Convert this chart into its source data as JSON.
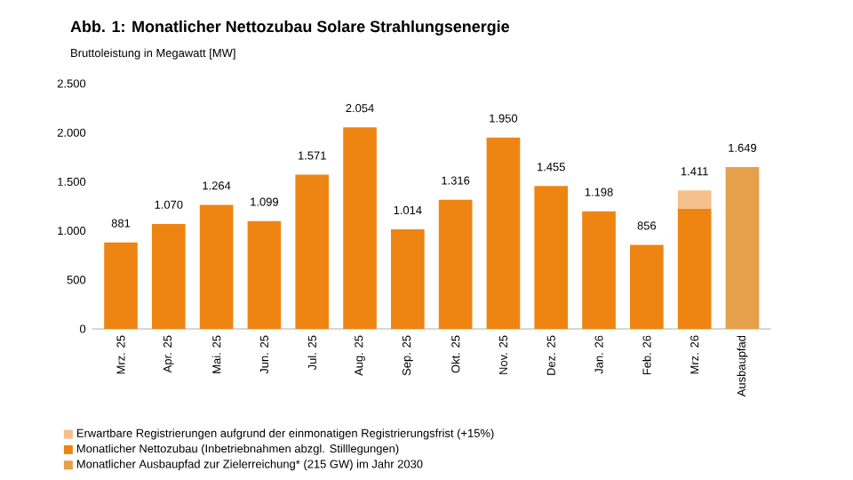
{
  "chart_data": {
    "type": "bar",
    "title": "Abb. 1: Monatlicher Nettozubau Solare Strahlungsenergie",
    "subtitle": "Bruttoleistung in Megawatt [MW]",
    "categories": [
      "Mrz. 25",
      "Apr. 25",
      "Mai. 25",
      "Jun. 25",
      "Jul. 25",
      "Aug. 25",
      "Sep. 25",
      "Okt. 25",
      "Nov. 25",
      "Dez. 25",
      "Jan. 26",
      "Feb. 26",
      "Mrz. 26",
      "Ausbaupfad"
    ],
    "stacked": true,
    "series": [
      {
        "name": "Monatlicher Nettozubau (Inbetriebnahmen abzgl. Stilllegungen)",
        "color": "#ee8512",
        "values": [
          881,
          1070,
          1264,
          1099,
          1571,
          2054,
          1014,
          1316,
          1950,
          1455,
          1198,
          856,
          1227,
          null
        ]
      },
      {
        "name": "Erwartbare Registrierungen aufgrund der einmonatigen Registrierungsfrist (+15%)",
        "color": "#f6c08c",
        "values": [
          null,
          null,
          null,
          null,
          null,
          null,
          null,
          null,
          null,
          null,
          null,
          null,
          184,
          null
        ]
      },
      {
        "name": "Monatlicher Ausbaupfad zur Zielerreichung* (215 GW) im Jahr 2030",
        "color": "#e6a04c",
        "values": [
          null,
          null,
          null,
          null,
          null,
          null,
          null,
          null,
          null,
          null,
          null,
          null,
          null,
          1649
        ]
      }
    ],
    "totals": [
      "881",
      "1.070",
      "1.264",
      "1.099",
      "1.571",
      "2.054",
      "1.014",
      "1.316",
      "1.950",
      "1.455",
      "1.198",
      "856",
      "1.411",
      "1.649"
    ],
    "ylim": [
      0,
      2500
    ],
    "yticks": [
      {
        "value": 0,
        "label": "0"
      },
      {
        "value": 500,
        "label": "500"
      },
      {
        "value": 1000,
        "label": "1.000"
      },
      {
        "value": 1500,
        "label": "1.500"
      },
      {
        "value": 2000,
        "label": "2.000"
      },
      {
        "value": 2500,
        "label": "2.500"
      }
    ],
    "grid": false,
    "legend": "bottom"
  }
}
